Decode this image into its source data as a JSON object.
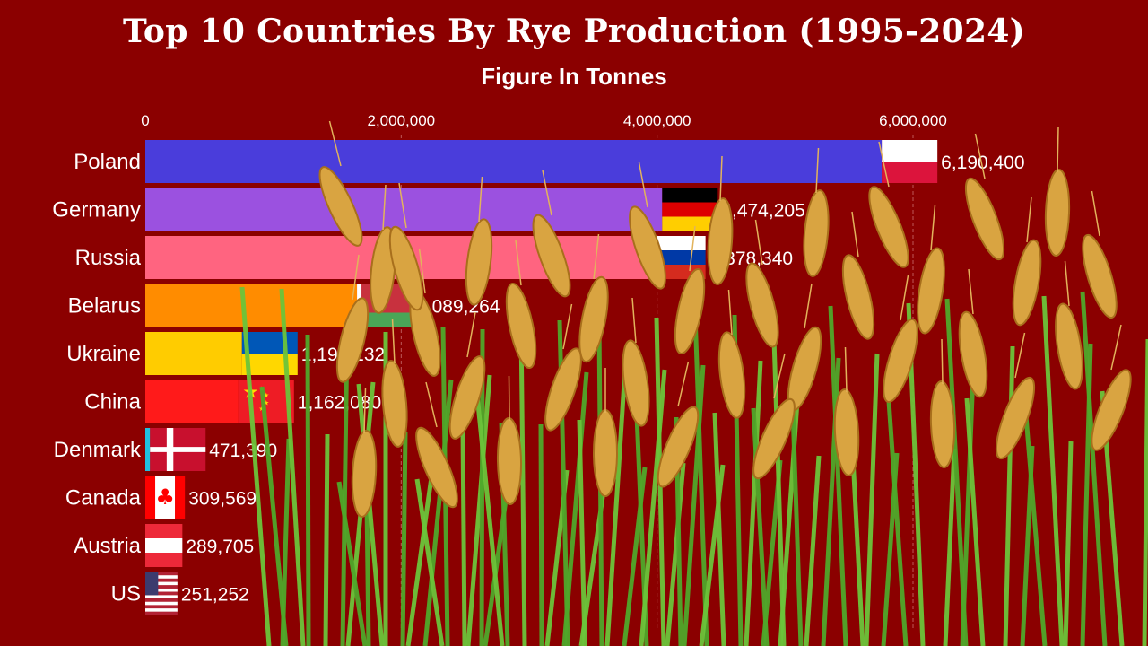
{
  "title": "Top 10 Countries By Rye Production (1995-2024)",
  "subtitle": "Figure In Tonnes",
  "colors": {
    "background": "#8b0000",
    "text": "#ffffff",
    "grid": "#c97070"
  },
  "chart_data": {
    "type": "bar",
    "orientation": "horizontal",
    "title": "Top 10 Countries By Rye Production (1995-2024)",
    "subtitle": "Figure In Tonnes",
    "xlim": [
      0,
      6500000
    ],
    "x_ticks": [
      0,
      2000000,
      4000000,
      6000000
    ],
    "x_tick_labels": [
      "0",
      "2,000,000",
      "4,000,000",
      "6,000,000"
    ],
    "grid": true,
    "legend": "none",
    "categories": [
      "Poland",
      "Germany",
      "Russia",
      "Belarus",
      "Ukraine",
      "China",
      "Denmark",
      "Canada",
      "Austria",
      "US"
    ],
    "values": [
      6190400,
      4474205,
      4378340,
      2089264,
      1190132,
      1162080,
      471390,
      309569,
      289705,
      251252
    ],
    "value_labels": [
      "6,190,400",
      "4,474,205",
      "4,378,340",
      "2,089,264",
      "1,190,132",
      "1,162,080",
      "471,390",
      "309,569",
      "289,705",
      "251,252"
    ],
    "bar_colors": [
      "#4a3ddb",
      "#9b51e0",
      "#ff6480",
      "#ff8c00",
      "#ffcc00",
      "#ff1a1a",
      "#20c0e0",
      "#ff3333",
      "#ff3333",
      "#ff3333"
    ],
    "flags": [
      "poland-flag",
      "germany-flag",
      "russia-flag",
      "belarus-flag",
      "ukraine-flag",
      "china-flag",
      "denmark-flag",
      "canada-flag",
      "austria-flag",
      "us-flag"
    ]
  },
  "decoration": "rye-stalks-illustration"
}
